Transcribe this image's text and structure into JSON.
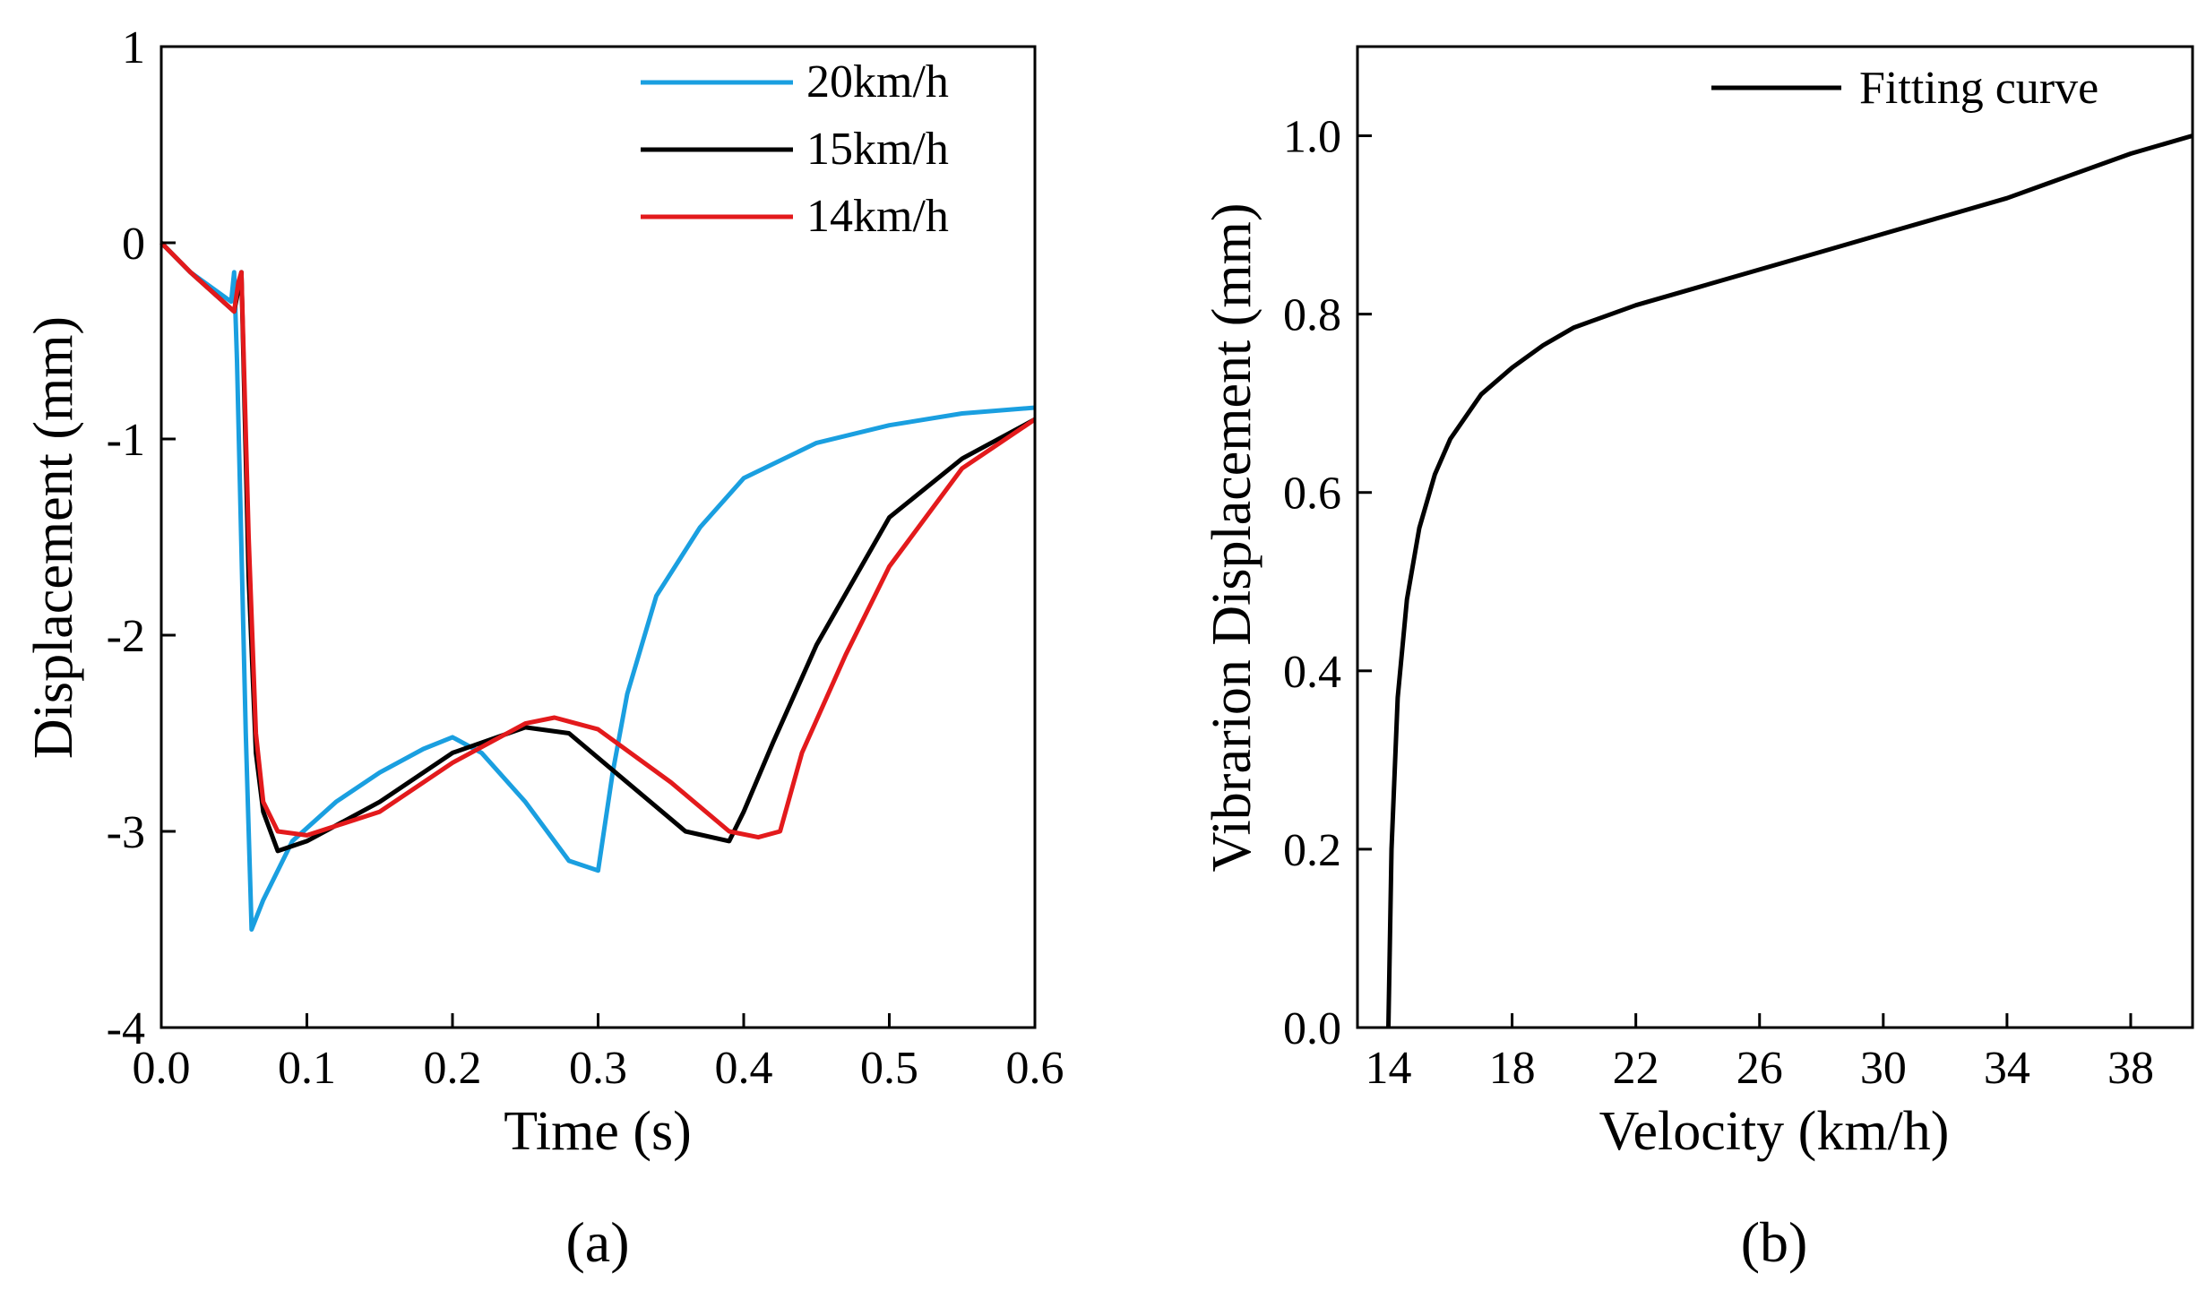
{
  "chart_data": [
    {
      "panel": "a",
      "type": "line",
      "xlabel": "Time (s)",
      "ylabel": "Displacement  (mm)",
      "xlim": [
        0.0,
        0.6
      ],
      "ylim": [
        -4,
        1
      ],
      "xticks": [
        "0.0",
        "0.1",
        "0.2",
        "0.3",
        "0.4",
        "0.5",
        "0.6"
      ],
      "yticks": [
        "1",
        "0",
        "-1",
        "-2",
        "-3",
        "-4"
      ],
      "legend_position": "top-right",
      "series": [
        {
          "name": "20km/h",
          "color": "#1a9fe0",
          "x": [
            0.0,
            0.02,
            0.048,
            0.05,
            0.052,
            0.058,
            0.062,
            0.07,
            0.09,
            0.12,
            0.15,
            0.18,
            0.2,
            0.22,
            0.25,
            0.28,
            0.3,
            0.305,
            0.31,
            0.32,
            0.34,
            0.37,
            0.4,
            0.45,
            0.5,
            0.55,
            0.6
          ],
          "y": [
            0.0,
            -0.15,
            -0.3,
            -0.15,
            -0.6,
            -2.5,
            -3.5,
            -3.35,
            -3.05,
            -2.85,
            -2.7,
            -2.58,
            -2.52,
            -2.6,
            -2.85,
            -3.15,
            -3.2,
            -2.95,
            -2.7,
            -2.3,
            -1.8,
            -1.45,
            -1.2,
            -1.02,
            -0.93,
            -0.87,
            -0.84
          ]
        },
        {
          "name": "15km/h",
          "color": "#000000",
          "x": [
            0.0,
            0.02,
            0.05,
            0.054,
            0.055,
            0.06,
            0.065,
            0.07,
            0.08,
            0.1,
            0.15,
            0.2,
            0.25,
            0.28,
            0.32,
            0.36,
            0.39,
            0.4,
            0.42,
            0.45,
            0.5,
            0.55,
            0.6
          ],
          "y": [
            0.0,
            -0.15,
            -0.35,
            -0.2,
            -0.15,
            -1.7,
            -2.6,
            -2.9,
            -3.1,
            -3.05,
            -2.85,
            -2.6,
            -2.47,
            -2.5,
            -2.75,
            -3.0,
            -3.05,
            -2.9,
            -2.55,
            -2.05,
            -1.4,
            -1.1,
            -0.9
          ]
        },
        {
          "name": "14km/h",
          "color": "#e31a1c",
          "x": [
            0.0,
            0.02,
            0.05,
            0.053,
            0.055,
            0.06,
            0.065,
            0.07,
            0.08,
            0.1,
            0.15,
            0.2,
            0.25,
            0.27,
            0.3,
            0.35,
            0.39,
            0.41,
            0.425,
            0.44,
            0.47,
            0.5,
            0.55,
            0.6
          ],
          "y": [
            0.0,
            -0.15,
            -0.35,
            -0.2,
            -0.15,
            -1.5,
            -2.5,
            -2.85,
            -3.0,
            -3.02,
            -2.9,
            -2.65,
            -2.45,
            -2.42,
            -2.48,
            -2.75,
            -3.0,
            -3.03,
            -3.0,
            -2.6,
            -2.1,
            -1.65,
            -1.15,
            -0.9
          ]
        }
      ]
    },
    {
      "panel": "b",
      "type": "line",
      "xlabel": "Velocity  (km/h)",
      "ylabel": "Vibrarion Displacement  (mm)",
      "xlim": [
        13,
        40
      ],
      "ylim": [
        0.0,
        1.1
      ],
      "xticks": [
        "14",
        "18",
        "22",
        "26",
        "30",
        "34",
        "38"
      ],
      "yticks": [
        "0.0",
        "0.2",
        "0.4",
        "0.6",
        "0.8",
        "1.0"
      ],
      "legend_position": "top-right",
      "series": [
        {
          "name": "Fitting curve",
          "color": "#000000",
          "x": [
            14.0,
            14.1,
            14.3,
            14.6,
            15.0,
            15.5,
            16.0,
            17.0,
            18.0,
            19.0,
            20.0,
            22.0,
            24.0,
            26.0,
            28.0,
            30.0,
            32.0,
            34.0,
            36.0,
            38.0,
            40.0
          ],
          "y": [
            0.0,
            0.2,
            0.37,
            0.48,
            0.56,
            0.62,
            0.66,
            0.71,
            0.74,
            0.765,
            0.785,
            0.81,
            0.83,
            0.85,
            0.87,
            0.89,
            0.91,
            0.93,
            0.955,
            0.98,
            1.0
          ]
        }
      ]
    }
  ],
  "panel_labels": [
    "(a)",
    "(b)"
  ]
}
